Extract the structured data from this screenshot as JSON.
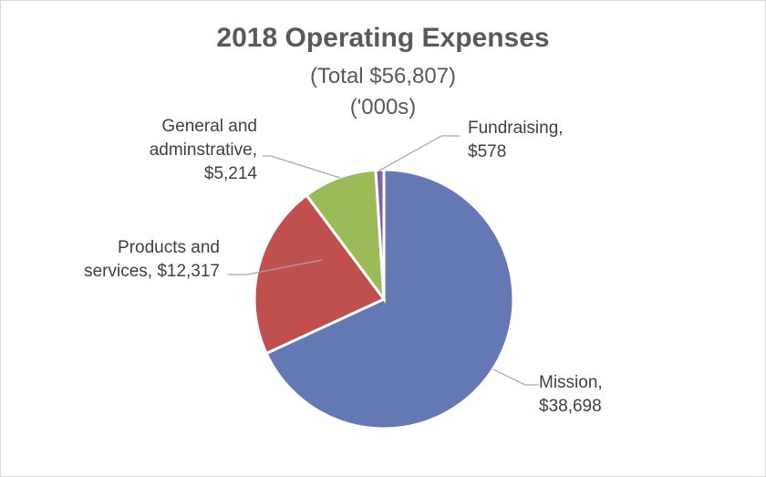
{
  "chart_data": {
    "type": "pie",
    "title": "2018 Operating Expenses",
    "subtitle_lines": [
      "(Total $56,807)",
      "('000s)"
    ],
    "slices": [
      {
        "label_lines": [
          "Mission,",
          "$38,698"
        ],
        "value": 38698,
        "color": "#6479b4"
      },
      {
        "label_lines": [
          "Products and",
          "services, $12,317"
        ],
        "value": 12317,
        "color": "#c0504d"
      },
      {
        "label_lines": [
          "General and",
          "adminstrative,",
          "$5,214"
        ],
        "value": 5214,
        "color": "#9bbb59"
      },
      {
        "label_lines": [
          "Fundraising,",
          "$578"
        ],
        "value": 578,
        "color": "#8064a2"
      }
    ],
    "legend": "none",
    "direction": "clockwise",
    "start_angle": "top"
  }
}
